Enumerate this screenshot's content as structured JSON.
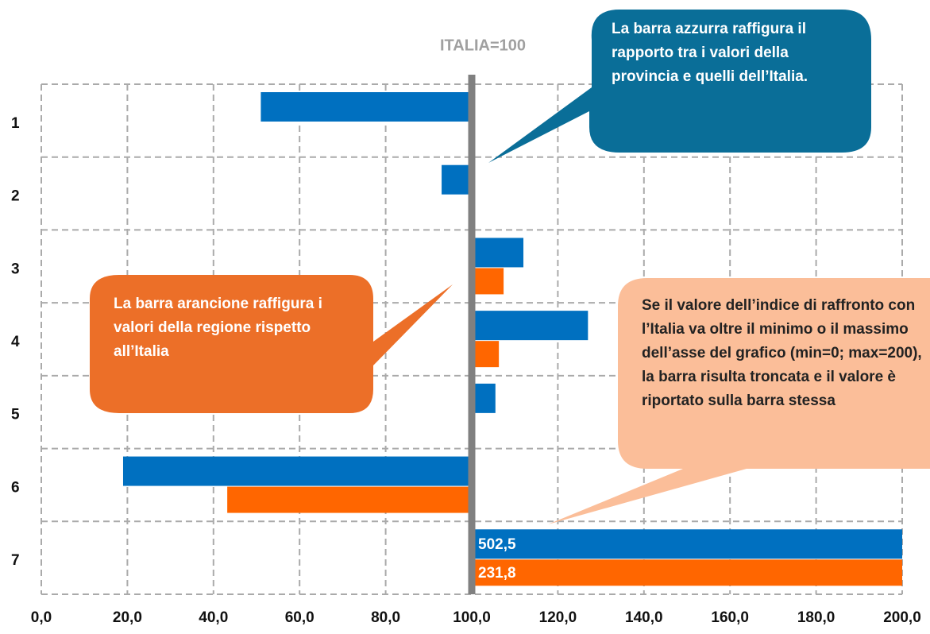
{
  "chart_data": {
    "type": "bar",
    "orientation": "horizontal",
    "title": "ITALIA=100",
    "categories": [
      "1",
      "2",
      "3",
      "4",
      "5",
      "6",
      "7"
    ],
    "reference_line": 100,
    "series": [
      {
        "name": "provincia",
        "color": "#0070c0",
        "values": [
          51,
          93,
          112,
          127,
          105.5,
          19,
          502.5
        ],
        "value_labels": [
          null,
          null,
          null,
          null,
          null,
          null,
          "502,5"
        ]
      },
      {
        "name": "regione",
        "color": "#ff6600",
        "values": [
          null,
          null,
          107.4,
          106.3,
          null,
          43.2,
          231.8
        ],
        "value_labels": [
          null,
          null,
          null,
          null,
          null,
          null,
          "231,8"
        ]
      }
    ],
    "xlim": [
      0,
      200
    ],
    "xticks": [
      {
        "value": 0,
        "label": "0,0"
      },
      {
        "value": 20,
        "label": "20,0"
      },
      {
        "value": 40,
        "label": "40,0"
      },
      {
        "value": 60,
        "label": "60,0"
      },
      {
        "value": 80,
        "label": "80,0"
      },
      {
        "value": 100,
        "label": "100,0"
      },
      {
        "value": 120,
        "label": "120,0"
      },
      {
        "value": 140,
        "label": "140,0"
      },
      {
        "value": 160,
        "label": "160,0"
      },
      {
        "value": 180,
        "label": "180,0"
      },
      {
        "value": 200,
        "label": "200,0"
      }
    ],
    "grid": true,
    "annotations": [
      {
        "text": "La barra azzurra raffigura il rapporto tra i valori della provincia e quelli dell’Italia.",
        "color": "#0a6e98"
      },
      {
        "text": "La barra arancione raffigura i valori della regione rispetto all’Italia",
        "color": "#ec6f28"
      },
      {
        "text": "Se il valore dell’indice di raffronto con l’Italia va oltre il minimo o il massimo dell’asse del grafico (min=0; max=200), la barra risulta troncata e il valore è riportato sulla barra stessa",
        "color": "#fbbe99"
      }
    ]
  }
}
